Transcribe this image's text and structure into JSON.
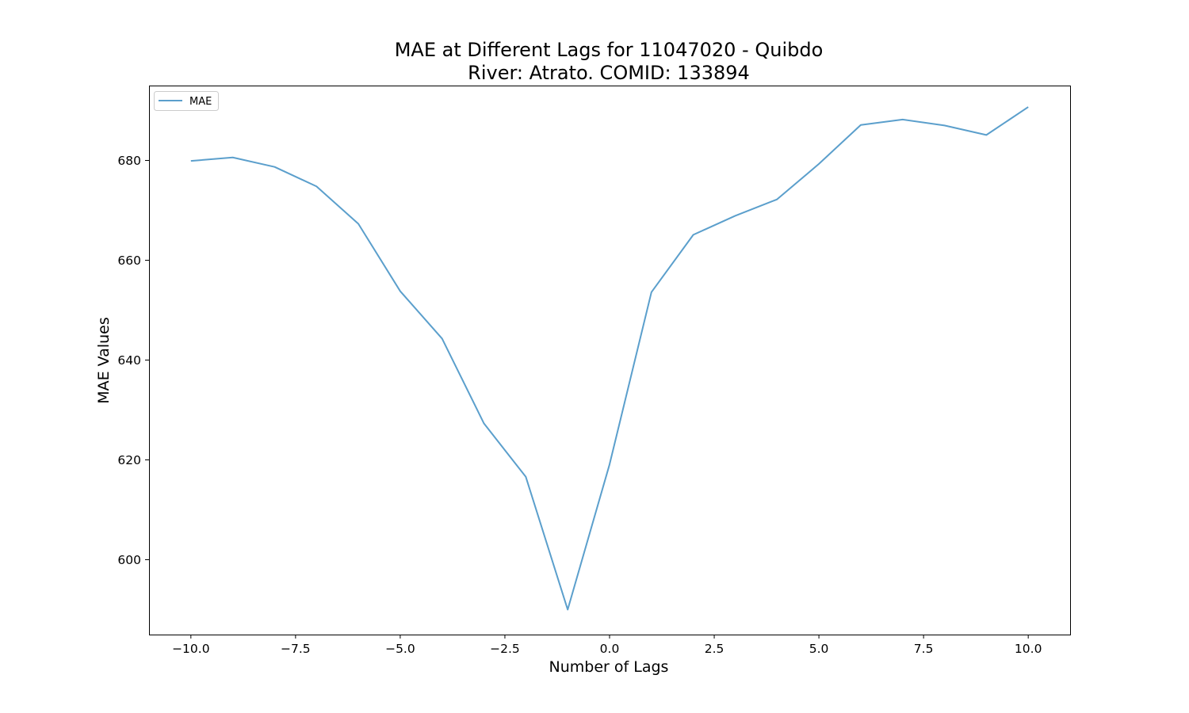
{
  "chart_data": {
    "type": "line",
    "title": "MAE at Different Lags for 11047020 - Quibdo",
    "subtitle": "River: Atrato. COMID: 133894",
    "xlabel": "Number of Lags",
    "ylabel": "MAE Values",
    "xlim": [
      -11,
      11
    ],
    "ylim": [
      585,
      695
    ],
    "xticks": [
      -10,
      -7.5,
      -5,
      -2.5,
      0,
      2.5,
      5,
      7.5,
      10
    ],
    "xtick_labels": [
      "−10.0",
      "−7.5",
      "−5.0",
      "−2.5",
      "0.0",
      "2.5",
      "5.0",
      "7.5",
      "10.0"
    ],
    "yticks": [
      600,
      620,
      640,
      660,
      680
    ],
    "ytick_labels": [
      "600",
      "620",
      "640",
      "660",
      "680"
    ],
    "grid": false,
    "legend": "top-left",
    "series": [
      {
        "name": "MAE",
        "color": "#5b9fcc",
        "x": [
          -10,
          -9,
          -8,
          -7,
          -6,
          -5,
          -4,
          -3,
          -2,
          -1,
          0,
          1,
          2,
          3,
          4,
          5,
          6,
          7,
          8,
          9,
          10
        ],
        "y": [
          679.9,
          680.6,
          678.7,
          674.8,
          667.3,
          653.8,
          644.3,
          627.3,
          616.6,
          590.0,
          619.1,
          653.6,
          665.1,
          668.9,
          672.2,
          679.3,
          687.1,
          688.2,
          687.0,
          685.1,
          690.7
        ]
      }
    ]
  }
}
